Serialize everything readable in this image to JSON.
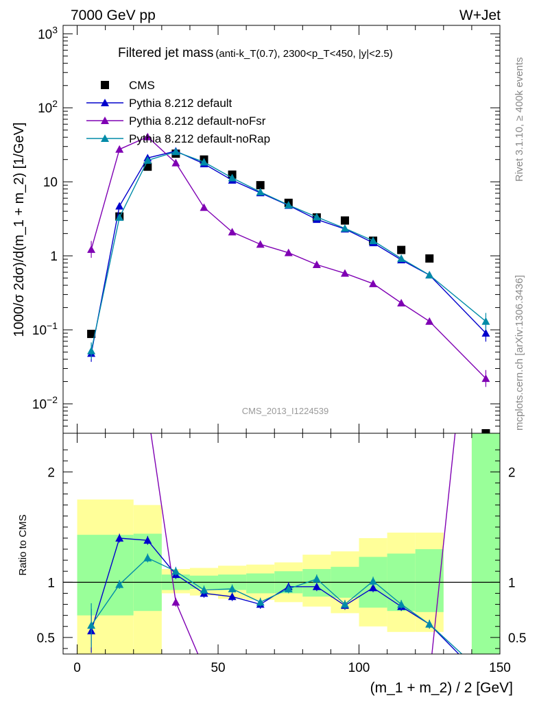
{
  "header": {
    "energy": "7000 GeV pp",
    "process": "W+Jet"
  },
  "side": {
    "rivet": "Rivet 3.1.10, ≥ 400k events",
    "mcplots": "mcplots.cern.ch [arXiv:1306.3436]"
  },
  "watermark": "CMS_2013_I1224539",
  "title": {
    "main": "Filtered jet mass",
    "sub": "(anti-k_T(0.7), 2300<p_T<450, |y|<2.5)"
  },
  "ylabel_main": "1000/σ 2dσ)/d(m_1 + m_2) [1/GeV]",
  "ylabel_ratio": "Ratio to CMS",
  "xlabel": "(m_1 + m_2) / 2 [GeV]",
  "colors": {
    "cms": "#000000",
    "default": "#0000cc",
    "noFsr": "#7f00b3",
    "noRap": "#008ba8",
    "band_outer": "#ffff99",
    "band_inner": "#99ff99"
  },
  "chart_data": [
    {
      "type": "line",
      "yscale": "log",
      "xlim": [
        -5,
        150
      ],
      "ylim": [
        0.004,
        1300
      ],
      "x_ticks": [
        0,
        50,
        100,
        150
      ],
      "y_ticks": [
        "10^-2",
        "10^-1",
        "1",
        "10",
        "10^2",
        "10^3"
      ],
      "x": [
        5,
        15,
        25,
        35,
        45,
        55,
        65,
        75,
        85,
        95,
        105,
        115,
        125,
        145
      ],
      "series": [
        {
          "name": "CMS",
          "marker": "square",
          "values": [
            0.088,
            3.4,
            16,
            24,
            20,
            12.5,
            9.0,
            5.2,
            3.3,
            3.0,
            1.6,
            1.2,
            0.92,
            0.004
          ]
        },
        {
          "name": "Pythia 8.212 default",
          "marker": "triangle",
          "values": [
            0.048,
            4.7,
            21,
            26,
            17.5,
            10.5,
            7.1,
            4.8,
            3.1,
            2.3,
            1.5,
            0.88,
            0.55,
            0.09
          ]
        },
        {
          "name": "Pythia 8.212 default-noFsr",
          "marker": "triangle",
          "values": [
            1.22,
            27.5,
            40.5,
            18,
            4.5,
            2.1,
            1.43,
            1.1,
            0.76,
            0.58,
            0.42,
            0.23,
            0.13,
            0.022
          ]
        },
        {
          "name": "Pythia 8.212 default-noRap",
          "marker": "triangle",
          "values": [
            0.052,
            3.3,
            19.5,
            25.5,
            18.5,
            11.3,
            7.3,
            4.85,
            3.35,
            2.35,
            1.6,
            0.92,
            0.55,
            0.13
          ]
        }
      ]
    },
    {
      "type": "line",
      "xlim": [
        -5,
        150
      ],
      "ylim": [
        0.35,
        2.35
      ],
      "y_ticks": [
        0.5,
        1,
        2
      ],
      "reference": 1,
      "bands": [
        {
          "x0": 0,
          "x1": 20,
          "outer": [
            0.3,
            1.75
          ],
          "inner": [
            0.7,
            1.43
          ]
        },
        {
          "x0": 20,
          "x1": 30,
          "outer": [
            0.3,
            1.7
          ],
          "inner": [
            0.74,
            1.44
          ]
        },
        {
          "x0": 30,
          "x1": 40,
          "outer": [
            0.9,
            1.12
          ],
          "inner": [
            0.93,
            1.07
          ]
        },
        {
          "x0": 40,
          "x1": 50,
          "outer": [
            0.88,
            1.13
          ],
          "inner": [
            0.94,
            1.06
          ]
        },
        {
          "x0": 50,
          "x1": 60,
          "outer": [
            0.85,
            1.15
          ],
          "inner": [
            0.93,
            1.07
          ]
        },
        {
          "x0": 60,
          "x1": 70,
          "outer": [
            0.84,
            1.16
          ],
          "inner": [
            0.9,
            1.08
          ]
        },
        {
          "x0": 70,
          "x1": 80,
          "outer": [
            0.82,
            1.18
          ],
          "inner": [
            0.9,
            1.1
          ]
        },
        {
          "x0": 80,
          "x1": 90,
          "outer": [
            0.78,
            1.25
          ],
          "inner": [
            0.87,
            1.12
          ]
        },
        {
          "x0": 90,
          "x1": 100,
          "outer": [
            0.72,
            1.28
          ],
          "inner": [
            0.86,
            1.14
          ]
        },
        {
          "x0": 100,
          "x1": 110,
          "outer": [
            0.6,
            1.4
          ],
          "inner": [
            0.77,
            1.23
          ]
        },
        {
          "x0": 110,
          "x1": 120,
          "outer": [
            0.55,
            1.45
          ],
          "inner": [
            0.74,
            1.26
          ]
        },
        {
          "x0": 120,
          "x1": 130,
          "outer": [
            0.55,
            1.45
          ],
          "inner": [
            0.73,
            1.3
          ]
        },
        {
          "x0": 140,
          "x1": 150,
          "outer": [
            0.35,
            2.35
          ],
          "inner": [
            0.35,
            2.35
          ]
        }
      ],
      "x": [
        5,
        15,
        25,
        35,
        45,
        55,
        65,
        75,
        85,
        95,
        105,
        115,
        125,
        145
      ],
      "series": [
        {
          "name": "Pythia 8.212 default",
          "values": [
            0.56,
            1.4,
            1.38,
            1.07,
            0.9,
            0.87,
            0.8,
            0.96,
            0.96,
            0.79,
            0.95,
            0.78,
            0.62,
            0.1
          ]
        },
        {
          "name": "Pythia 8.212 default-noFsr",
          "values": [
            14,
            8.1,
            2.55,
            0.82,
            0.22,
            0.17,
            0.16,
            0.21,
            0.23,
            0.19,
            0.26,
            0.19,
            0.14,
            5
          ]
        },
        {
          "name": "Pythia 8.212 default-noRap",
          "values": [
            0.61,
            0.98,
            1.22,
            1.1,
            0.93,
            0.94,
            0.82,
            0.94,
            1.03,
            0.8,
            1.01,
            0.8,
            0.62,
            0.15
          ]
        }
      ]
    }
  ]
}
